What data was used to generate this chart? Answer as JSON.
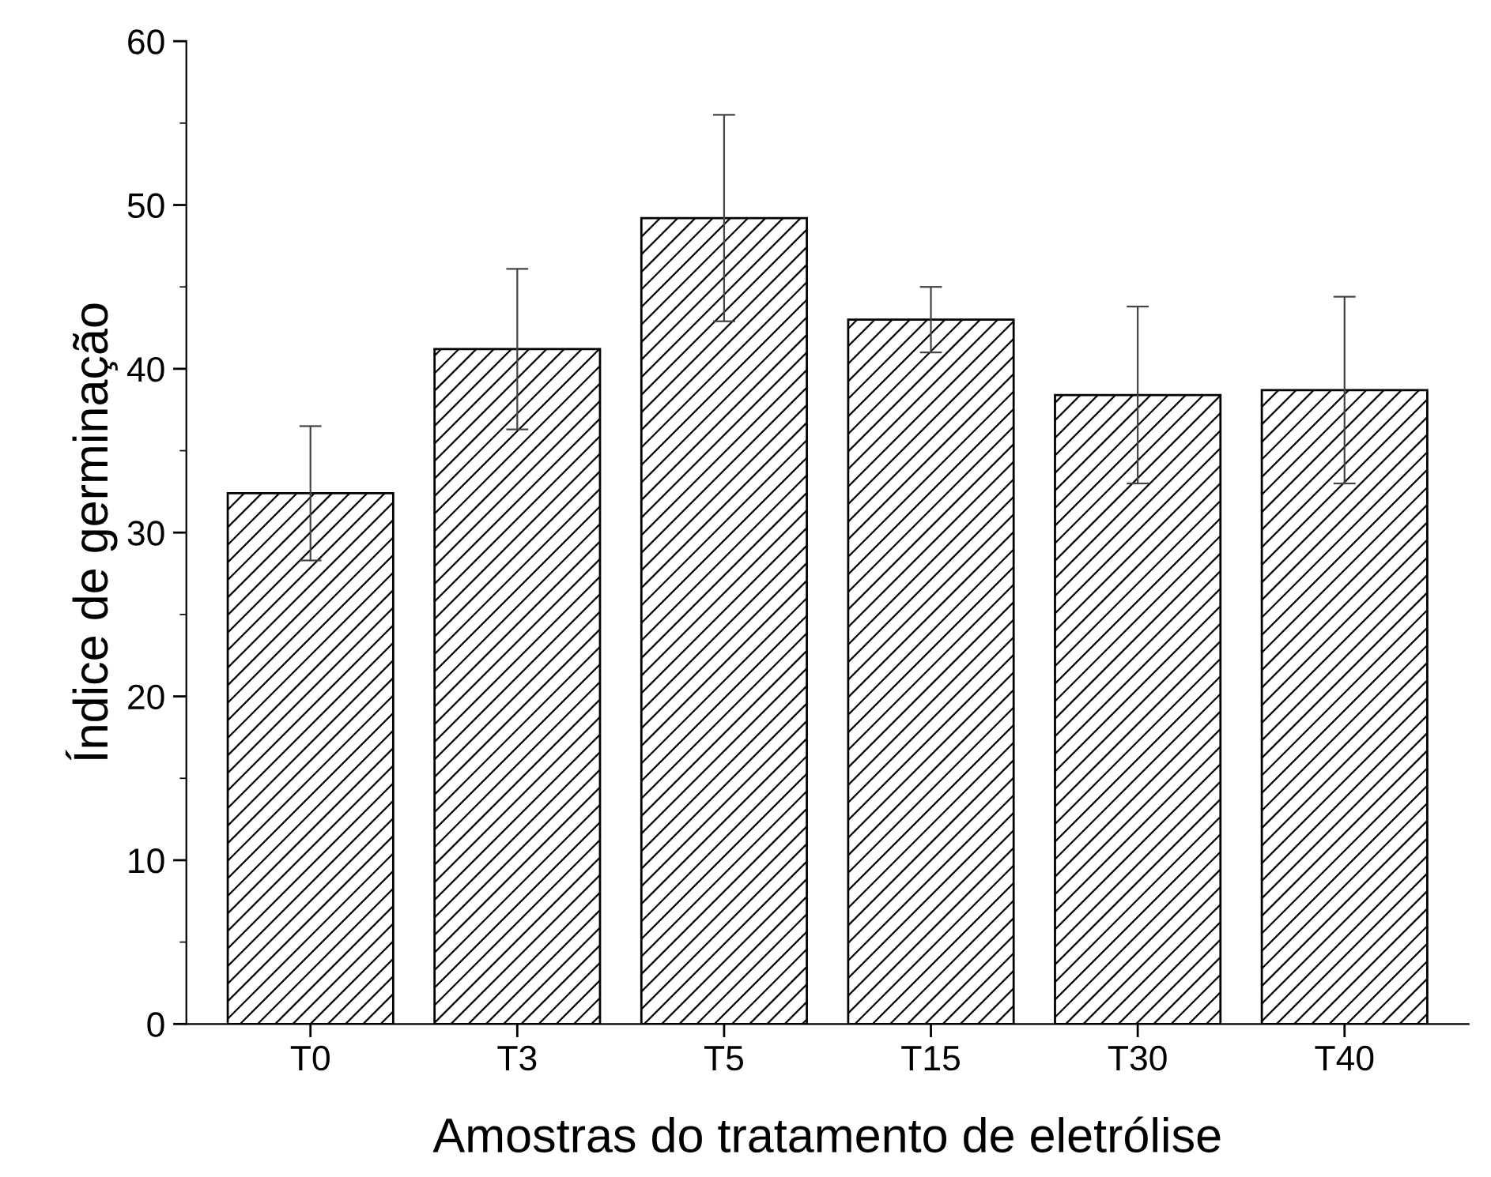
{
  "chart_data": {
    "type": "bar",
    "xlabel": "Amostras do tratamento de eletrólise",
    "ylabel": "Índice de germinação",
    "categories": [
      "T0",
      "T3",
      "T5",
      "T15",
      "T30",
      "T40"
    ],
    "values": [
      32.4,
      41.2,
      49.2,
      43.0,
      38.4,
      38.7
    ],
    "errors": [
      4.1,
      4.9,
      6.3,
      2.0,
      5.4,
      5.7
    ],
    "color": "#000000",
    "ylim": [
      0,
      60
    ],
    "yticks": [
      0,
      10,
      20,
      30,
      40,
      50,
      60
    ],
    "grid": false
  }
}
